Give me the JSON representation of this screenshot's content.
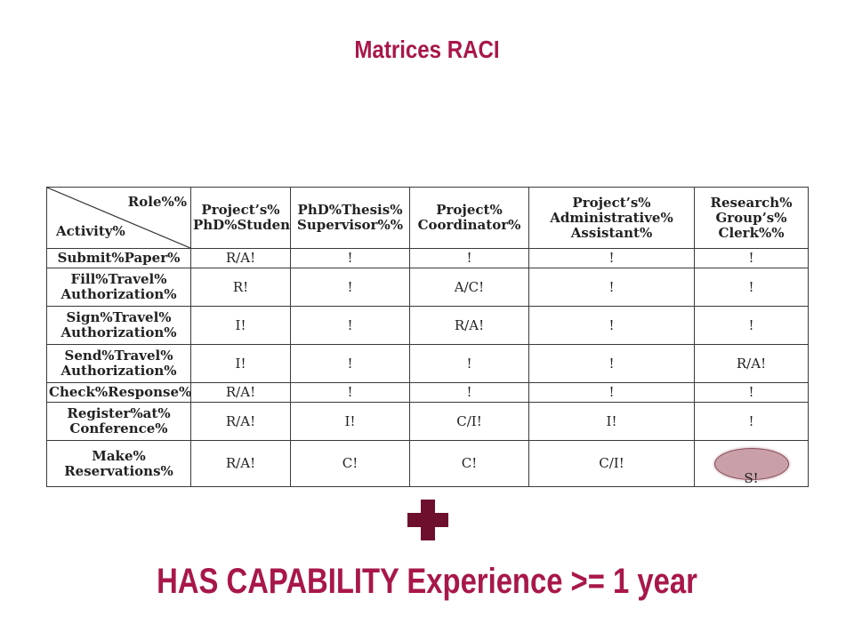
{
  "colors": {
    "accent": "#a8174a",
    "plus": "#6e0f2d",
    "highlight_fill": "#c9a0a8",
    "table_border": "#3a3a3a",
    "text": "#222222"
  },
  "slide": {
    "title": "Matrices RACI",
    "tagline": "HAS CAPABILITY Experience >= 1 year",
    "plus_icon": "plus-icon"
  },
  "table": {
    "corner_role": "Role%%",
    "corner_activity": "Activity%",
    "columns": [
      "Project’s%\nPhD%Student%",
      "PhD%Thesis%\nSupervisor%%",
      "Project%\nCoordinator%",
      "Project’s%\nAdministrative%\nAssistant%",
      "Research%\nGroup’s%\nClerk%%"
    ],
    "rows": [
      {
        "activity": "Submit%Paper%",
        "cells": [
          "R/A!",
          "!",
          "!",
          "!",
          "!"
        ]
      },
      {
        "activity": "Fill%Travel%\nAuthorization%",
        "cells": [
          "R!",
          "!",
          "A/C!",
          "!",
          "!"
        ]
      },
      {
        "activity": "Sign%Travel%\nAuthorization%",
        "cells": [
          "I!",
          "!",
          "R/A!",
          "!",
          "!"
        ]
      },
      {
        "activity": "Send%Travel%\nAuthorization%",
        "cells": [
          "I!",
          "!",
          "!",
          "!",
          "R/A!"
        ]
      },
      {
        "activity": "Check%Response%",
        "cells": [
          "R/A!",
          "!",
          "!",
          "!",
          "!"
        ]
      },
      {
        "activity": "Register%at%\nConference%",
        "cells": [
          "R/A!",
          "I!",
          "C/I!",
          "I!",
          "!"
        ]
      },
      {
        "activity": "Make%\nReservations%",
        "cells": [
          "R/A!",
          "C!",
          "C!",
          "C/I!",
          "S!"
        ]
      }
    ]
  }
}
